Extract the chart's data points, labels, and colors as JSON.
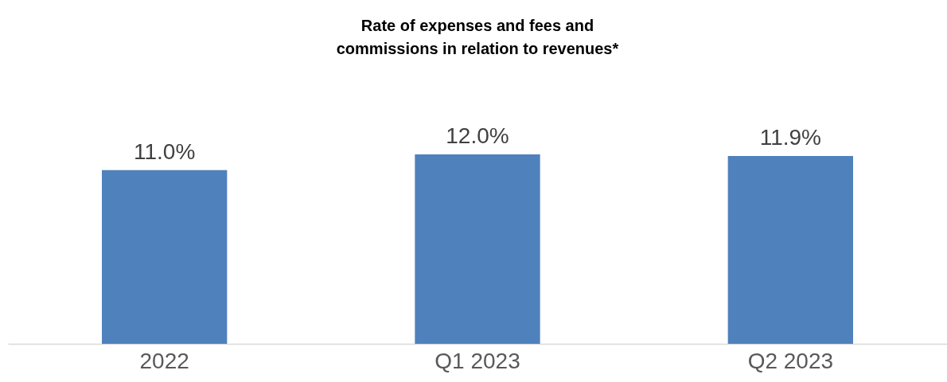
{
  "chart_data": {
    "type": "bar",
    "title": "Rate of expenses and fees and\ncommissions in relation to revenues*",
    "categories": [
      "2022",
      "Q1 2023",
      "Q2 2023"
    ],
    "values": [
      11.0,
      12.0,
      11.9
    ],
    "value_labels": [
      "11.0%",
      "12.0%",
      "11.9%"
    ],
    "color": "#4f81bd",
    "grid": false
  }
}
